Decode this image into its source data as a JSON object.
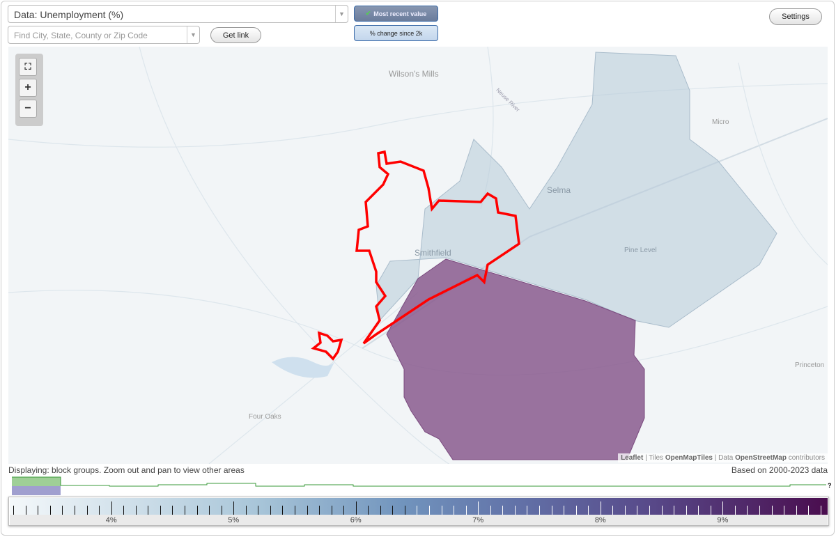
{
  "toolbar": {
    "data_select": "Data: Unemployment (%)",
    "search_placeholder": "Find City, State, County or Zip Code",
    "get_link": "Get link",
    "most_recent": "Most recent value",
    "pct_change": "% change since 2k",
    "settings": "Settings"
  },
  "map": {
    "places": [
      "Wilson's Mills",
      "Neuse River",
      "Micro",
      "Selma",
      "Smithfield",
      "Pine Level",
      "Princeton",
      "Four Oaks"
    ],
    "zoom": {
      "fullscreen": "fullscreen",
      "in": "+",
      "out": "−"
    },
    "attribution": {
      "leaflet": "Leaflet",
      "tiles_pre": "Tiles",
      "tiles": "OpenMapTiles",
      "data_pre": "Data",
      "osm": "OpenStreetMap",
      "post": "contributors"
    },
    "colors": {
      "low": "#c9d7e3",
      "high": "#8a5a8e",
      "outline": "#ff0000"
    }
  },
  "status": {
    "displaying": "Displaying: block groups. Zoom out and pan to view other areas",
    "based_on": "Based on 2000-2023 data"
  },
  "histogram": {
    "unknown_label": "?"
  },
  "legend": {
    "min": 3.17,
    "max": 9.87,
    "major_ticks": [
      "4%",
      "5%",
      "6%",
      "7%",
      "8%",
      "9%"
    ],
    "colors": [
      "#f4f8fa",
      "#a9c6d9",
      "#7194bd",
      "#6272a8",
      "#584a8a",
      "#4a0d4e"
    ]
  }
}
